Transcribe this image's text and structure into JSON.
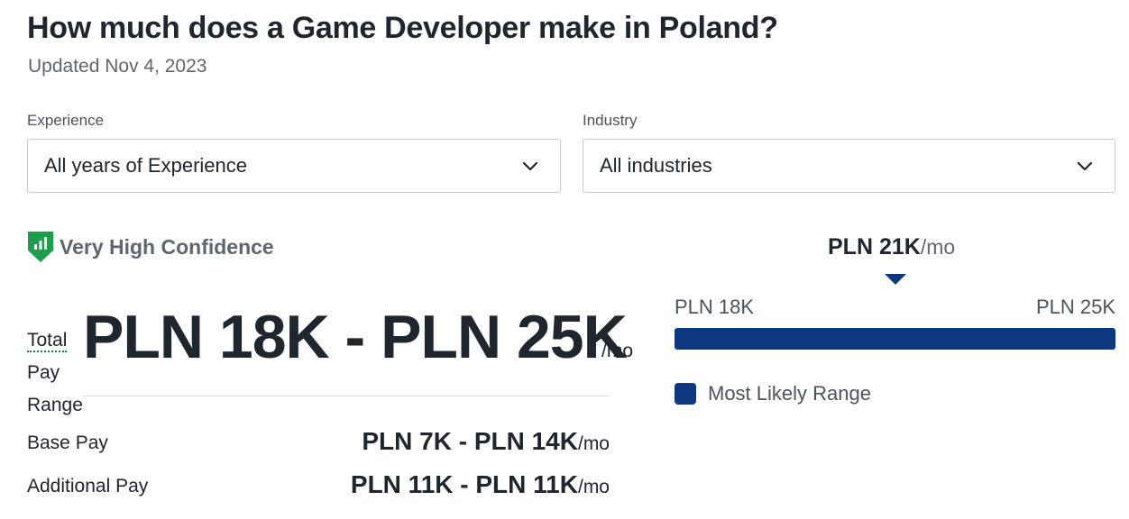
{
  "header": {
    "title": "How much does a Game Developer make in Poland?",
    "updated": "Updated Nov 4, 2023"
  },
  "filters": {
    "experience": {
      "label": "Experience",
      "value": "All years of Experience"
    },
    "industry": {
      "label": "Industry",
      "value": "All industries"
    }
  },
  "confidence": {
    "label": "Very High Confidence",
    "color": "#1e9e4a"
  },
  "total_pay": {
    "label_line1": "Total",
    "label_line2": "Pay",
    "label_line3": "Range",
    "value": "PLN 18K - PLN 25K",
    "unit": "/mo"
  },
  "breakdown": {
    "base": {
      "label": "Base Pay",
      "value": "PLN 7K - PLN 14K",
      "unit": "/mo"
    },
    "additional": {
      "label": "Additional Pay",
      "value": "PLN 11K - PLN 11K",
      "unit": "/mo"
    }
  },
  "range_chart": {
    "median_value": "PLN 21K",
    "median_unit": "/mo",
    "min_label": "PLN 18K",
    "max_label": "PLN 25K",
    "legend": "Most Likely Range",
    "bar_color": "#0d3880"
  }
}
